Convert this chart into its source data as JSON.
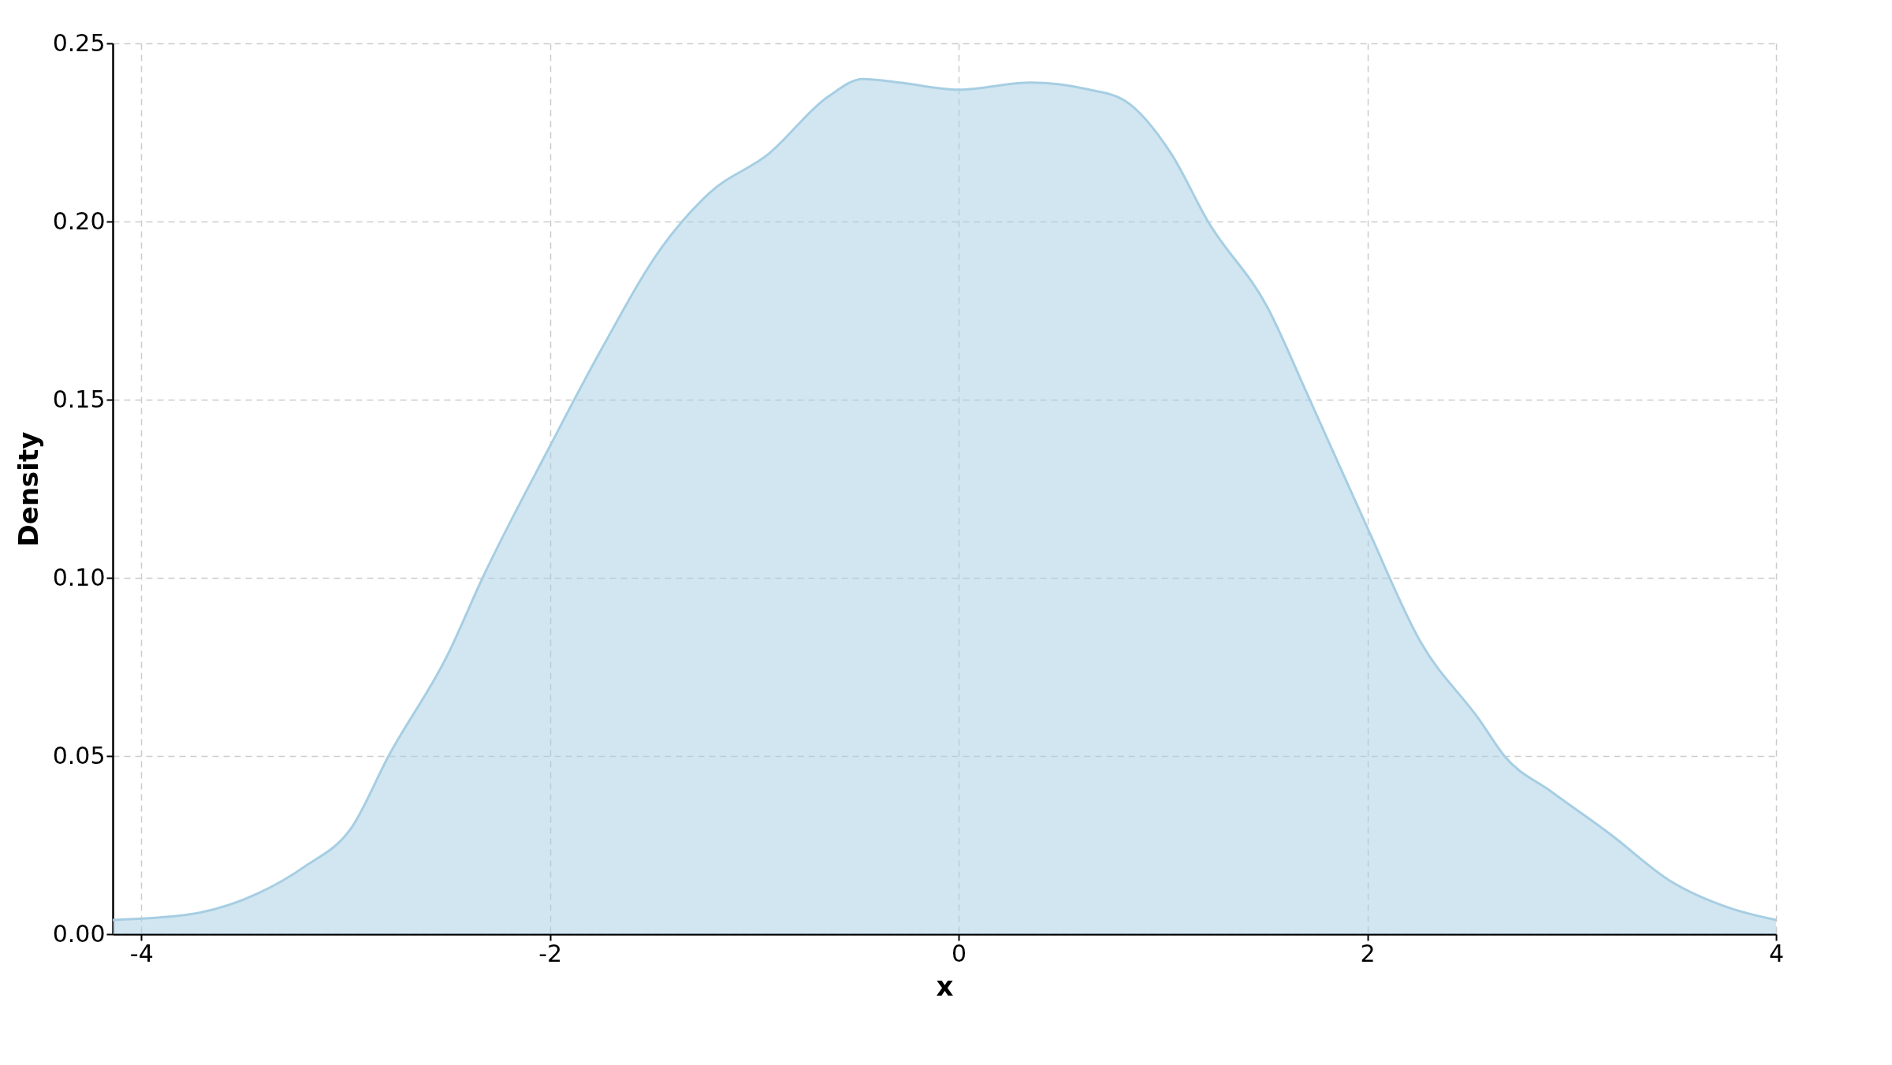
{
  "chart_data": {
    "type": "area",
    "xlabel": "x",
    "ylabel": "Density",
    "series": [
      {
        "color": "#a6cee3",
        "x": [
          -4.14,
          -3.78,
          -3.43,
          -3.2,
          -2.97,
          -2.79,
          -2.5,
          -2.33,
          -2.0,
          -1.75,
          -1.45,
          -1.22,
          -0.93,
          -0.64,
          -0.47,
          -0.29,
          0.0,
          0.35,
          0.64,
          0.81,
          1.04,
          1.22,
          1.51,
          1.71,
          2.0,
          2.26,
          2.55,
          2.67,
          2.9,
          3.19,
          3.48,
          3.77,
          4.0
        ],
        "values": [
          0.004,
          0.0054,
          0.0114,
          0.019,
          0.03,
          0.05,
          0.0785,
          0.1,
          0.137,
          0.164,
          0.193,
          0.208,
          0.219,
          0.235,
          0.24,
          0.239,
          0.237,
          0.239,
          0.237,
          0.234,
          0.219,
          0.2,
          0.176,
          0.151,
          0.114,
          0.082,
          0.06,
          0.05,
          0.04,
          0.028,
          0.015,
          0.0074,
          0.004
        ]
      }
    ],
    "xlim": [
      -4.14,
      4.0
    ],
    "xticks": [
      -4,
      -2,
      0,
      2,
      4
    ],
    "ylim": [
      0,
      0.25
    ],
    "yticks": [
      {
        "value": 0,
        "label": "0.00"
      },
      0.05,
      {
        "value": 0.1,
        "label": "0.10"
      },
      0.15,
      {
        "value": 0.2,
        "label": "0.20"
      },
      0.25
    ],
    "grid": true,
    "line_style": "solid"
  }
}
